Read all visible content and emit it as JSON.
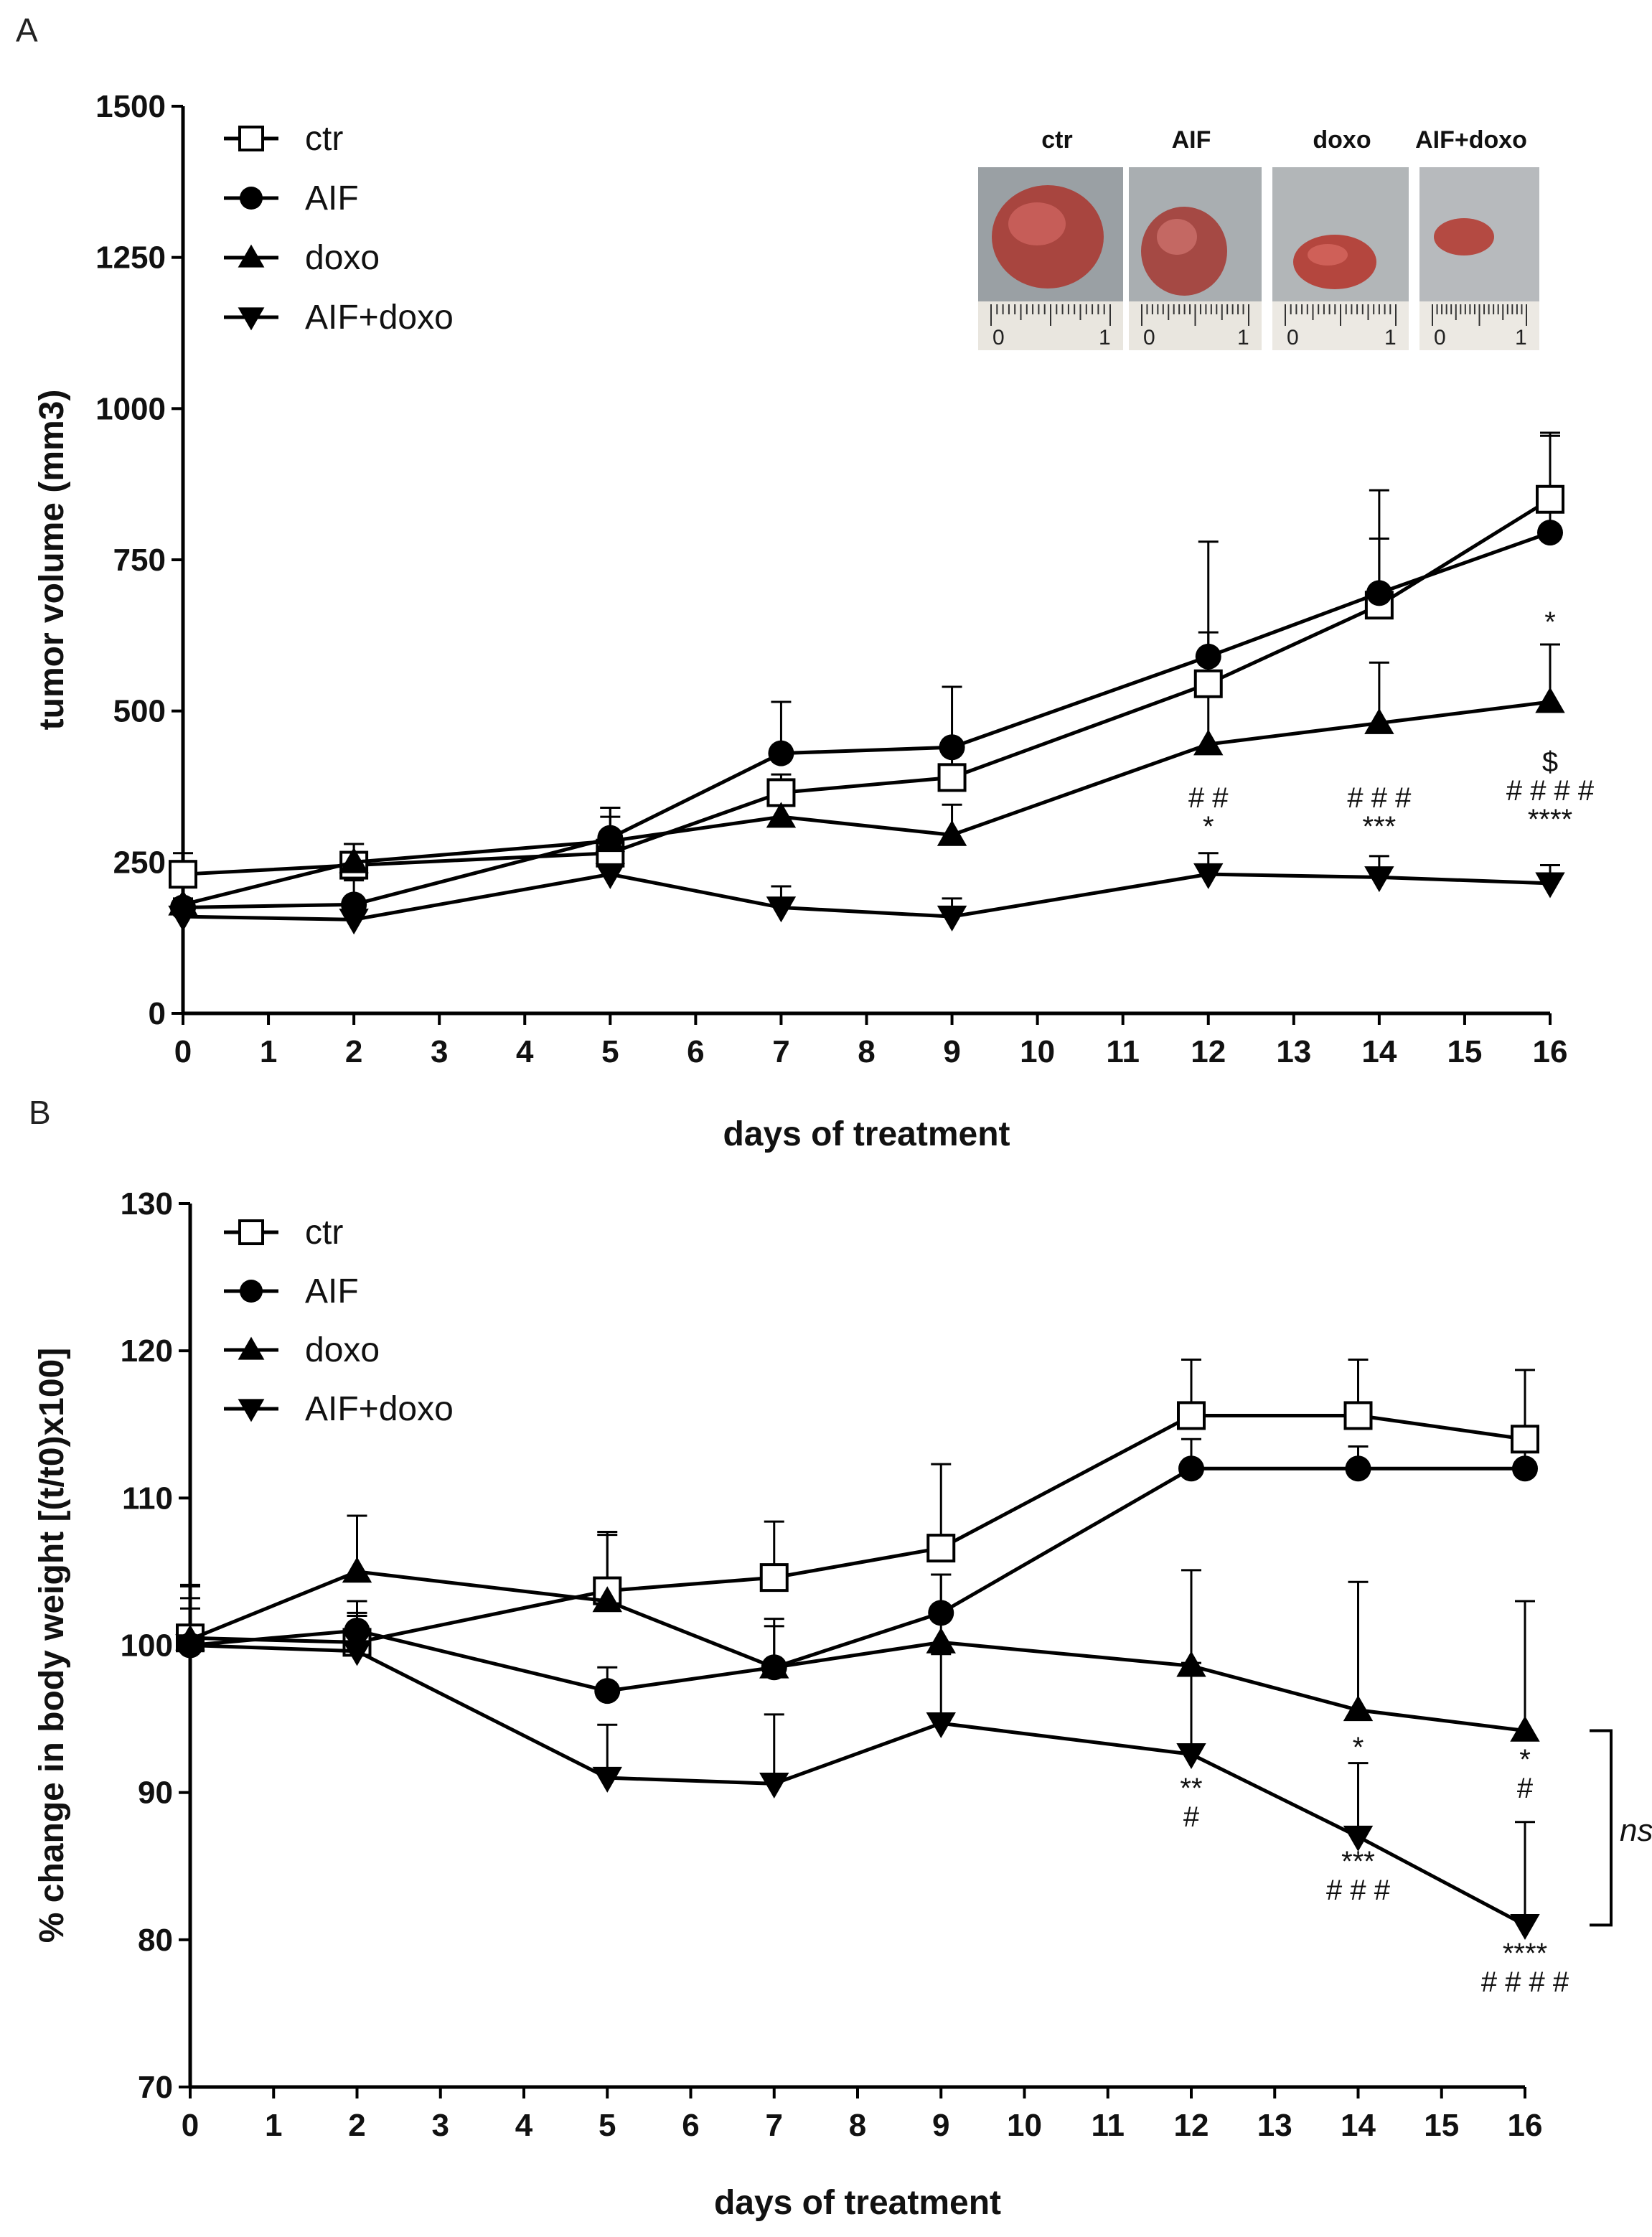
{
  "panels": {
    "a": {
      "label": "A"
    },
    "b": {
      "label": "B"
    }
  },
  "photo_inset": {
    "labels": [
      "ctr",
      "AIF",
      "doxo",
      "AIF+doxo"
    ],
    "ruler_marks": [
      "0",
      "1"
    ]
  },
  "chart_data": [
    {
      "id": "a",
      "type": "line",
      "title": "",
      "xlabel": "days of treatment",
      "ylabel": "tumor volume (mm3)",
      "xlim": [
        0,
        16
      ],
      "ylim": [
        0,
        1500
      ],
      "x_ticks": [
        0,
        1,
        2,
        3,
        4,
        5,
        6,
        7,
        8,
        9,
        10,
        11,
        12,
        13,
        14,
        15,
        16
      ],
      "y_ticks": [
        0,
        250,
        500,
        750,
        1000,
        1250,
        1500
      ],
      "legend_position": "top-left",
      "x": [
        0,
        2,
        5,
        7,
        9,
        12,
        14,
        16
      ],
      "series": [
        {
          "name": "ctr",
          "marker": "open-square",
          "values": [
            230,
            245,
            265,
            365,
            390,
            545,
            675,
            850
          ],
          "errors": [
            35,
            35,
            60,
            30,
            45,
            85,
            110,
            105
          ]
        },
        {
          "name": "AIF",
          "marker": "filled-circle",
          "values": [
            175,
            180,
            290,
            430,
            440,
            590,
            695,
            795
          ],
          "errors": [
            45,
            40,
            50,
            85,
            100,
            190,
            170,
            165
          ]
        },
        {
          "name": "doxo",
          "marker": "filled-triangle-up",
          "values": [
            180,
            250,
            285,
            325,
            295,
            445,
            480,
            515
          ],
          "errors": [
            40,
            30,
            55,
            55,
            50,
            150,
            100,
            95
          ]
        },
        {
          "name": "AIF+doxo",
          "marker": "filled-triangle-down",
          "values": [
            160,
            155,
            230,
            175,
            160,
            230,
            225,
            215
          ],
          "errors": [
            30,
            25,
            20,
            35,
            30,
            35,
            35,
            30
          ]
        }
      ],
      "annotations": [
        {
          "x": 12,
          "lines": [
            "# #",
            "*"
          ]
        },
        {
          "x": 14,
          "lines": [
            "# # #",
            "***"
          ]
        },
        {
          "x": 16,
          "lines": [
            "*"
          ]
        },
        {
          "x": 16,
          "lines": [
            "$",
            "# # # #",
            "****"
          ]
        }
      ]
    },
    {
      "id": "b",
      "type": "line",
      "title": "",
      "xlabel": "days of treatment",
      "ylabel": "% change in body weight [(t/t0)x100]",
      "xlim": [
        0,
        16
      ],
      "ylim": [
        70,
        130
      ],
      "x_ticks": [
        0,
        1,
        2,
        3,
        4,
        5,
        6,
        7,
        8,
        9,
        10,
        11,
        12,
        13,
        14,
        15,
        16
      ],
      "y_ticks": [
        70,
        80,
        90,
        100,
        110,
        120,
        130
      ],
      "legend_position": "top-left",
      "x": [
        0,
        2,
        5,
        7,
        9,
        12,
        14,
        16
      ],
      "series": [
        {
          "name": "ctr",
          "marker": "open-square",
          "values": [
            100.5,
            100.2,
            103.7,
            104.6,
            106.6,
            115.6,
            115.6,
            114.0
          ],
          "errors": [
            3.5,
            2.0,
            4.0,
            3.8,
            5.7,
            3.8,
            3.8,
            4.7
          ]
        },
        {
          "name": "AIF",
          "marker": "filled-circle",
          "values": [
            100.0,
            101.0,
            96.9,
            98.5,
            102.2,
            112.0,
            112.0,
            112.0
          ],
          "errors": [
            2.5,
            2.0,
            1.6,
            3.3,
            2.6,
            2.0,
            1.5,
            1.2
          ]
        },
        {
          "name": "doxo",
          "marker": "filled-triangle-up",
          "values": [
            100.4,
            105.0,
            103.0,
            98.5,
            100.2,
            98.6,
            95.6,
            94.2
          ],
          "errors": [
            3.7,
            3.8,
            4.5,
            2.8,
            4.6,
            6.5,
            8.7,
            8.8
          ]
        },
        {
          "name": "AIF+doxo",
          "marker": "filled-triangle-down",
          "values": [
            100.0,
            99.6,
            91.0,
            90.6,
            94.7,
            92.6,
            87.0,
            81.0
          ],
          "errors": [
            3.2,
            2.4,
            3.6,
            4.7,
            4.7,
            6.2,
            5.0,
            7.0
          ]
        }
      ],
      "annotations": [
        {
          "x": 12,
          "lines": [
            "**",
            "#"
          ]
        },
        {
          "x": 14,
          "lines": [
            "*"
          ]
        },
        {
          "x": 14,
          "lines": [
            "***",
            "# # #"
          ]
        },
        {
          "x": 16,
          "lines": [
            "*",
            "#"
          ]
        },
        {
          "x": 16,
          "lines": [
            "****",
            "# # # #"
          ]
        }
      ],
      "bracket": {
        "label": "ns",
        "from_series": "doxo",
        "to_series": "AIF+doxo",
        "at_x": 16
      }
    }
  ]
}
